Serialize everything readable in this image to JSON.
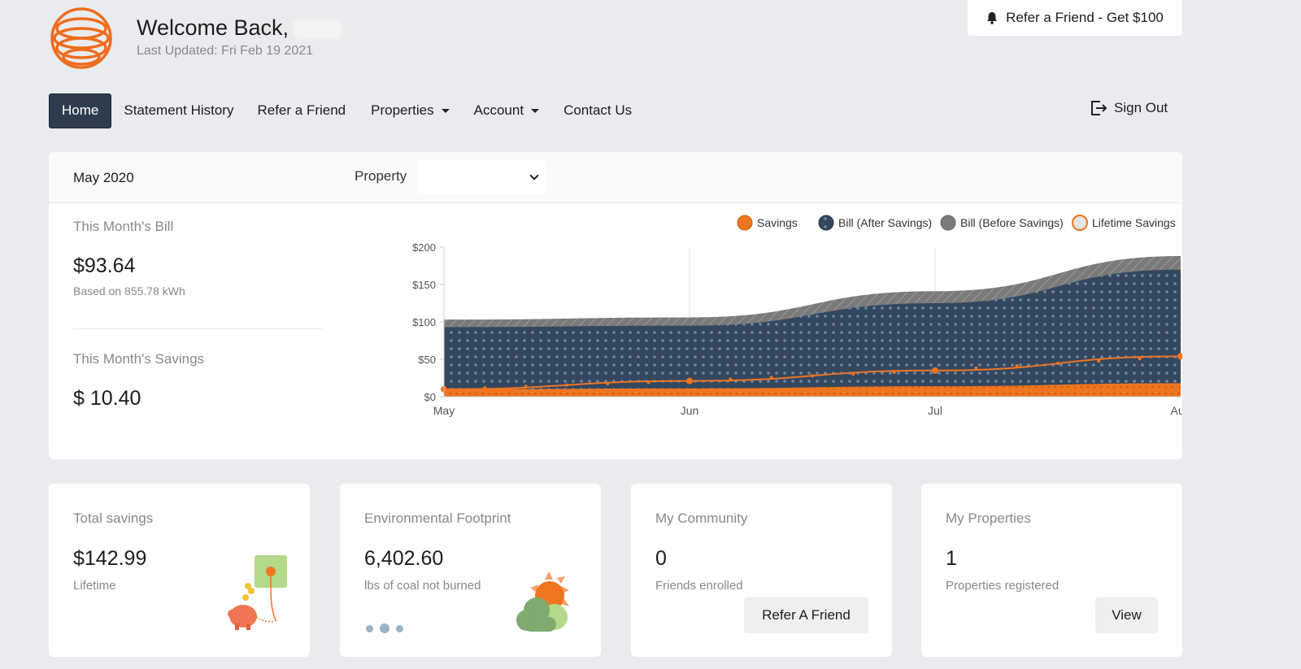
{
  "header": {
    "welcome": "Welcome Back,",
    "last_updated": "Last Updated: Fri Feb 19 2021",
    "refer_top": "Refer a Friend - Get $100"
  },
  "nav": {
    "items": [
      {
        "label": "Home",
        "active": true
      },
      {
        "label": "Statement History"
      },
      {
        "label": "Refer a Friend"
      },
      {
        "label": "Properties",
        "dropdown": true
      },
      {
        "label": "Account",
        "dropdown": true
      },
      {
        "label": "Contact Us"
      }
    ],
    "sign_out": "Sign Out"
  },
  "main": {
    "month": "May 2020",
    "property_label": "Property",
    "property_value": "",
    "bill_label": "This Month's Bill",
    "bill_amount": "$93.64",
    "bill_basis": "Based on 855.78 kWh",
    "savings_label": "This Month's Savings",
    "savings_amount": "$ 10.40"
  },
  "chart_data": {
    "type": "area",
    "categories": [
      "May",
      "Jun",
      "Jul",
      "Aug"
    ],
    "ylim": [
      0,
      200
    ],
    "yticks": [
      "$0",
      "$50",
      "$100",
      "$150",
      "$200"
    ],
    "legend_position": "top-right",
    "series": [
      {
        "name": "Savings",
        "values": [
          10,
          11,
          14,
          18
        ],
        "color": "#f07520"
      },
      {
        "name": "Bill (After Savings)",
        "values": [
          93,
          95,
          125,
          170
        ],
        "color": "#34475e"
      },
      {
        "name": "Bill (Before Savings)",
        "values": [
          103,
          106,
          141,
          188
        ],
        "color": "#7a7a7a"
      },
      {
        "name": "Lifetime Savings",
        "values": [
          10,
          21,
          35,
          54
        ],
        "color": "#f07520"
      }
    ]
  },
  "cards": [
    {
      "title": "Total savings",
      "value": "$142.99",
      "sub": "Lifetime"
    },
    {
      "title": "Environmental Footprint",
      "value": "6,402.60",
      "sub": "lbs of coal not burned"
    },
    {
      "title": "My Community",
      "value": "0",
      "sub": "Friends enrolled",
      "button": "Refer A Friend"
    },
    {
      "title": "My Properties",
      "value": "1",
      "sub": "Properties registered",
      "button": "View"
    }
  ],
  "colors": {
    "accent": "#f07520",
    "nav_active": "#2e3d4e",
    "background": "#e9ecef"
  }
}
